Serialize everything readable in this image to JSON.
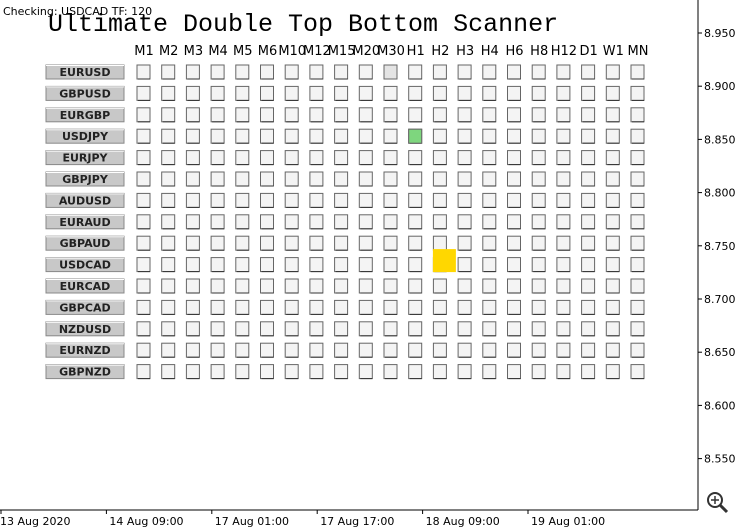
{
  "status": "Checking: USDCAD TF: 120",
  "title": "Ultimate Double Top Bottom Scanner",
  "timeframes": [
    "M1",
    "M2",
    "M3",
    "M4",
    "M5",
    "M6",
    "M10",
    "M12",
    "M15",
    "M20",
    "M30",
    "H1",
    "H2",
    "H3",
    "H4",
    "H6",
    "H8",
    "H12",
    "D1",
    "W1",
    "MN"
  ],
  "symbols": [
    "EURUSD",
    "GBPUSD",
    "EURGBP",
    "USDJPY",
    "EURJPY",
    "GBPJPY",
    "AUDUSD",
    "EURAUD",
    "GBPAUD",
    "USDCAD",
    "EURCAD",
    "GBPCAD",
    "NZDUSD",
    "EURNZD",
    "GBPNZD"
  ],
  "signals": [
    {
      "symbol": "EURUSD",
      "timeframe": "M30",
      "color": "#e4e4e4",
      "large": false
    },
    {
      "symbol": "USDJPY",
      "timeframe": "H1",
      "color": "#7ed67e",
      "large": false
    },
    {
      "symbol": "USDCAD",
      "timeframe": "H2",
      "color": "#ffd700",
      "large": true
    }
  ],
  "price_axis": [
    "8.950",
    "8.900",
    "8.850",
    "8.800",
    "8.750",
    "8.700",
    "8.650",
    "8.600",
    "8.550"
  ],
  "time_axis": [
    "13 Aug 2020",
    "14 Aug 09:00",
    "17 Aug 01:00",
    "17 Aug 17:00",
    "18 Aug 09:00",
    "19 Aug 01:00"
  ]
}
